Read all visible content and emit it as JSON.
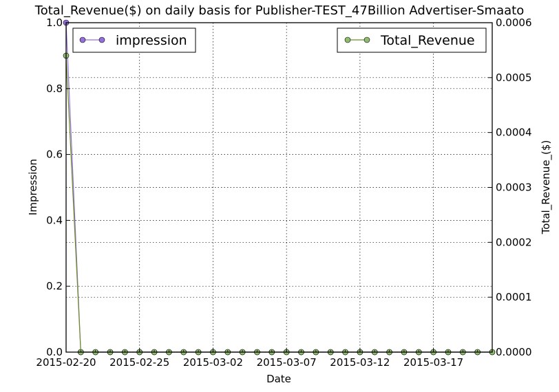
{
  "chart_data": {
    "type": "line",
    "title": "Total_Revenue($) on daily basis for Publisher-TEST_47Billion Advertiser-Smaato",
    "xlabel": "Date",
    "ylabel_left": "Impression",
    "ylabel_right": "Total_Revenue_($)",
    "x_start": "2015-02-20",
    "x_end": "2015-03-21",
    "x_tick_labels": [
      "2015-02-20",
      "2015-02-25",
      "2015-03-02",
      "2015-03-07",
      "2015-03-12",
      "2015-03-17"
    ],
    "ylim_left": [
      0,
      1.0
    ],
    "yticks_left": [
      "0.0",
      "0.2",
      "0.4",
      "0.6",
      "0.8",
      "1.0"
    ],
    "ylim_right": [
      0,
      0.0006
    ],
    "yticks_right": [
      "0.0000",
      "0.0001",
      "0.0002",
      "0.0003",
      "0.0004",
      "0.0005",
      "0.0006"
    ],
    "grid": true,
    "dates": [
      "2015-02-20",
      "2015-02-21",
      "2015-02-22",
      "2015-02-23",
      "2015-02-24",
      "2015-02-25",
      "2015-02-26",
      "2015-02-27",
      "2015-02-28",
      "2015-03-01",
      "2015-03-02",
      "2015-03-03",
      "2015-03-04",
      "2015-03-05",
      "2015-03-06",
      "2015-03-07",
      "2015-03-08",
      "2015-03-09",
      "2015-03-10",
      "2015-03-11",
      "2015-03-12",
      "2015-03-13",
      "2015-03-14",
      "2015-03-15",
      "2015-03-16",
      "2015-03-17",
      "2015-03-18",
      "2015-03-19",
      "2015-03-20",
      "2015-03-21"
    ],
    "series": [
      {
        "name": "impression",
        "axis": "left",
        "color": "#9370db",
        "legend_position": "top-left",
        "values": [
          1,
          0,
          0,
          0,
          0,
          0,
          0,
          0,
          0,
          0,
          0,
          0,
          0,
          0,
          0,
          0,
          0,
          0,
          0,
          0,
          0,
          0,
          0,
          0,
          0,
          0,
          0,
          0,
          0,
          0
        ]
      },
      {
        "name": "Total_Revenue",
        "axis": "right",
        "color": "#6b8e23",
        "marker_color": "#8fbc6f",
        "legend_position": "top-right",
        "values": [
          0.00054,
          0,
          0,
          0,
          0,
          0,
          0,
          0,
          0,
          0,
          0,
          0,
          0,
          0,
          0,
          0,
          0,
          0,
          0,
          0,
          0,
          0,
          0,
          0,
          0,
          0,
          0,
          0,
          0,
          0
        ]
      }
    ]
  }
}
